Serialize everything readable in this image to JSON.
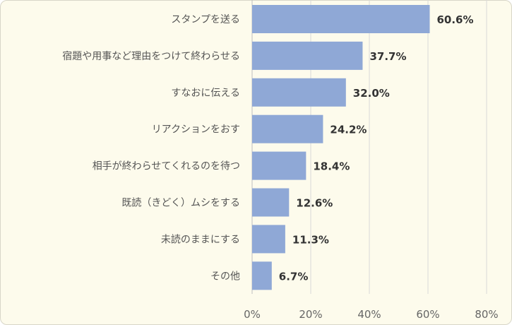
{
  "chart_data": {
    "type": "bar",
    "orientation": "horizontal",
    "categories": [
      "スタンプを送る",
      "宿題や用事など理由をつけて終わらせる",
      "すなおに伝える",
      "リアクションをおす",
      "相手が終わらせてくれるのを待つ",
      "既読（きどく）ムシをする",
      "未読のままにする",
      "その他"
    ],
    "values": [
      60.6,
      37.7,
      32.0,
      24.2,
      18.4,
      12.6,
      11.3,
      6.7
    ],
    "data_labels": [
      "60.6%",
      "37.7%",
      "32.0%",
      "24.2%",
      "18.4%",
      "12.6%",
      "11.3%",
      "6.7%"
    ],
    "xlim": [
      0,
      80
    ],
    "x_ticks": [
      0,
      20,
      40,
      60,
      80
    ],
    "x_tick_labels": [
      "0%",
      "20%",
      "40%",
      "60%",
      "80%"
    ],
    "grid": true,
    "bar_color": "#8fa8d6",
    "background_color": "#fdfbec",
    "gridline_color": "#d9d9d9"
  }
}
